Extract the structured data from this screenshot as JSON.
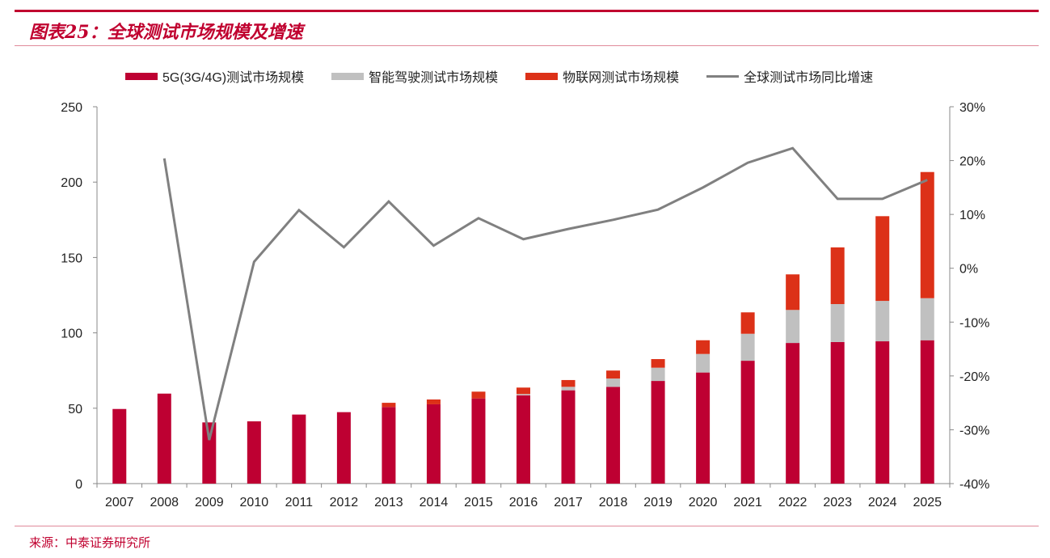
{
  "title": "图表25：全球测试市场规模及增速",
  "source": "来源：中泰证券研究所",
  "chart_data": {
    "type": "bar",
    "stacked": true,
    "categories": [
      "2007",
      "2008",
      "2009",
      "2010",
      "2011",
      "2012",
      "2013",
      "2014",
      "2015",
      "2016",
      "2017",
      "2018",
      "2019",
      "2020",
      "2021",
      "2022",
      "2023",
      "2024",
      "2025"
    ],
    "series": [
      {
        "name": "5G(3G/4G)测试市场规模",
        "type": "bar",
        "axis": "left",
        "color": "#be0032",
        "values": [
          49.5,
          59.7,
          40.6,
          41.3,
          45.8,
          47.4,
          50.8,
          52.6,
          56.5,
          58.6,
          61.9,
          64.2,
          68.1,
          73.7,
          81.5,
          93.3,
          93.9,
          94.4,
          95.1
        ]
      },
      {
        "name": "智能驾驶测试市场规模",
        "type": "bar",
        "axis": "left",
        "color": "#c0c0c0",
        "values": [
          0,
          0,
          0,
          0,
          0,
          0,
          0,
          0,
          0,
          0.8,
          2.3,
          5.5,
          8.8,
          12.3,
          17.9,
          21.9,
          25.2,
          26.8,
          27.9
        ]
      },
      {
        "name": "物联网测试市场规模",
        "type": "bar",
        "axis": "left",
        "color": "#dc3118",
        "values": [
          0,
          0,
          0,
          0,
          0,
          0,
          2.8,
          3.2,
          4.5,
          4.3,
          4.5,
          5.3,
          5.7,
          9.1,
          14.2,
          23.6,
          37.6,
          56.2,
          83.7
        ]
      },
      {
        "name": "全球测试市场同比增速",
        "type": "line",
        "axis": "right",
        "color": "#808080",
        "values": [
          null,
          20.4,
          -31.9,
          1.2,
          10.8,
          3.9,
          12.4,
          4.2,
          9.3,
          5.4,
          7.3,
          9.0,
          10.9,
          15.0,
          19.6,
          22.3,
          12.9,
          12.9,
          16.4
        ]
      }
    ],
    "y_left": {
      "min": 0,
      "max": 250,
      "ticks": [
        "0",
        "50",
        "100",
        "150",
        "200",
        "250"
      ]
    },
    "y_right": {
      "min": -40,
      "max": 30,
      "ticks": [
        "-40%",
        "-30%",
        "-20%",
        "-10%",
        "0%",
        "10%",
        "20%",
        "30%"
      ]
    },
    "grid": false,
    "legend": "top"
  }
}
